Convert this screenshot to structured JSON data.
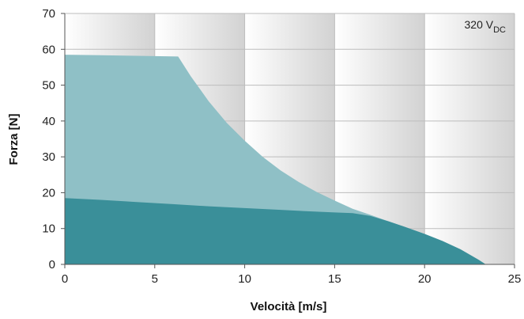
{
  "chart_data": {
    "type": "area",
    "title": "",
    "xlabel": "Velocità [m/s]",
    "ylabel": "Forza [N]",
    "xlim": [
      0,
      25
    ],
    "ylim": [
      0,
      70
    ],
    "xticks": [
      0,
      5,
      10,
      15,
      20,
      25
    ],
    "yticks": [
      0,
      10,
      20,
      30,
      40,
      50,
      60,
      70
    ],
    "grid": true,
    "annotation": {
      "main": "320 V",
      "sub": "DC",
      "position": "top-right"
    },
    "series": [
      {
        "color": "#8fc0c6",
        "x": [
          0,
          6.3,
          7,
          8,
          9,
          10,
          11,
          12,
          13,
          14,
          15,
          16,
          17,
          18,
          19,
          20,
          21,
          22,
          23,
          23.4
        ],
        "y": [
          58.5,
          58,
          52.5,
          45.5,
          39.5,
          34.5,
          30,
          26.2,
          23,
          20.2,
          17.8,
          15.5,
          13.8,
          12,
          10.3,
          8.5,
          6.5,
          4.2,
          1.3,
          0
        ]
      },
      {
        "color": "#3a8f99",
        "x": [
          0,
          2,
          4,
          6,
          8,
          10,
          12,
          14,
          15,
          16,
          17,
          18,
          19,
          20,
          21,
          22,
          23,
          23.4
        ],
        "y": [
          18.5,
          18,
          17.4,
          16.8,
          16.2,
          15.7,
          15.2,
          14.7,
          14.5,
          14.3,
          13.5,
          12,
          10.3,
          8.5,
          6.5,
          4.2,
          1.3,
          0
        ]
      }
    ]
  }
}
